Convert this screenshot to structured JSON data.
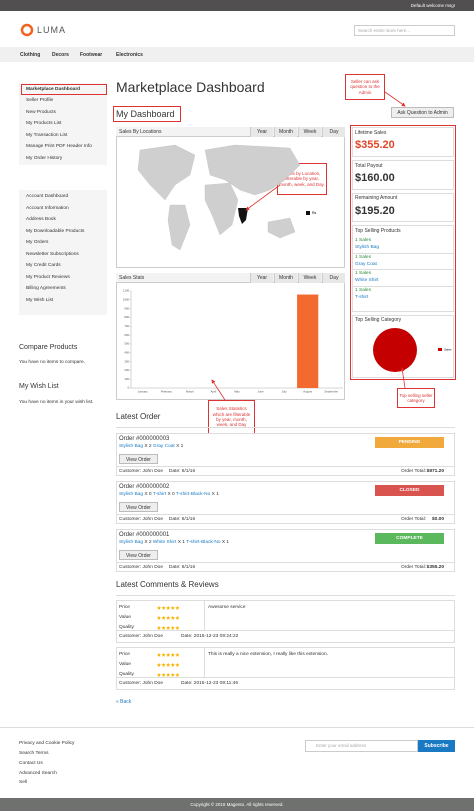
{
  "top_bar": {
    "welcome": "Default welcome msg!"
  },
  "header": {
    "logo": "LUMA",
    "search_placeholder": "Search entire store here..."
  },
  "nav": [
    "Clothing",
    "Decors",
    "Footwear",
    "Electronics"
  ],
  "sidebar": {
    "menu1": [
      "Marketplace Dashboard",
      "Seller Profile",
      "New Products",
      "My Products List",
      "My Transaction List",
      "Manage Print PDF Header Info",
      "My Order History"
    ],
    "menu2": [
      "Account Dashboard",
      "Account Information",
      "Address Book",
      "My Downloadable Products",
      "My Orders",
      "Newsletter Subscriptions",
      "My Credit Cards",
      "My Product Reviews",
      "Billing Agreements",
      "My Wish List"
    ],
    "compare_title": "Compare Products",
    "compare_text": "You have no items to compare.",
    "wishlist_title": "My Wish List",
    "wishlist_text": "You have no items in your wish list."
  },
  "page_title": "Marketplace Dashboard",
  "dashboard_title": "My Dashboard",
  "ask_button": "Ask Question to Admin",
  "annotations": [
    "Seller can ask question to the Admin",
    "Sales by Location, filterable by year, month, week, and Day.",
    "Sales Statistics which are filterable by year, month, week, and Day",
    "Top selling seller category"
  ],
  "sales_by_locations": {
    "title": "Sales By Locations",
    "tabs": [
      "Year",
      "Month",
      "Week",
      "Day"
    ],
    "legend": "Rs"
  },
  "sales_stats": {
    "type": "bar",
    "title": "Sales Stats",
    "tabs": [
      "Year",
      "Month",
      "Week",
      "Day"
    ],
    "categories": [
      "January",
      "February",
      "March",
      "April",
      "May",
      "June",
      "July",
      "August",
      "September"
    ],
    "values": [
      0,
      0,
      0,
      0,
      0,
      0,
      0,
      1060,
      0
    ],
    "color": "#f26a2e",
    "ylim": [
      0,
      1100
    ],
    "yticks": [
      0,
      100,
      200,
      300,
      400,
      500,
      600,
      700,
      800,
      900,
      1000,
      1100
    ]
  },
  "summary": {
    "lifetime_sales_label": "Lifetime Sales",
    "lifetime_sales": "$355.20",
    "total_payout_label": "Total Payout",
    "total_payout": "$160.00",
    "remaining_label": "Remaining Amount",
    "remaining": "$195.20",
    "top_products_title": "Top Selling Products",
    "top_products": [
      {
        "sales": "1 Sales",
        "name": "Stylish Bag"
      },
      {
        "sales": "1 Sales",
        "name": "Gray Coat"
      },
      {
        "sales": "1 Sales",
        "name": "White Shirt"
      },
      {
        "sales": "1 Sales",
        "name": "T-shirt"
      }
    ],
    "top_category_title": "Top Selling Category",
    "category_legend": "Sales"
  },
  "latest_order": {
    "title": "Latest Order",
    "orders": [
      {
        "title": "Order #000000003",
        "items": [
          {
            "name": "Stylish Bag",
            "qty": "X 2"
          },
          {
            "name": "Gray Coat",
            "qty": "X 1"
          }
        ],
        "status": "PENDING",
        "status_color": "#f2a93b",
        "button": "View Order",
        "customer": "Customer: John Doe",
        "date": "Date: 8/1/16",
        "total_label": "Order Total:",
        "total": "$871.20"
      },
      {
        "title": "Order #000000002",
        "items": [
          {
            "name": "Stylish Bag",
            "qty": "X 0"
          },
          {
            "name": "T-shirt",
            "qty": "X 0"
          },
          {
            "name": "T-shirt-Black-No",
            "qty": "X 1"
          }
        ],
        "status": "CLOSED",
        "status_color": "#d9534f",
        "button": "View Order",
        "customer": "Customer: John Doe",
        "date": "Date: 8/1/16",
        "total_label": "Order Total:",
        "total": "$0.00"
      },
      {
        "title": "Order #000000001",
        "items": [
          {
            "name": "Stylish Bag",
            "qty": "X 2"
          },
          {
            "name": "White Shirt",
            "qty": "X 1"
          },
          {
            "name": "T-shirt-Black-No",
            "qty": "X 1"
          }
        ],
        "status": "COMPLETE",
        "status_color": "#5cb85c",
        "button": "View Order",
        "customer": "Customer: John Doe",
        "date": "Date: 8/1/16",
        "total_label": "Order Total:",
        "total": "$355.20"
      }
    ]
  },
  "reviews": {
    "title": "Latest Comments & Reviews",
    "labels": [
      "Price",
      "Value",
      "Quality"
    ],
    "items": [
      {
        "comment": "Awesome service",
        "customer": "Customer: John Doe",
        "date": "Date: 2015-12-23 09:24:22"
      },
      {
        "comment": "This is really a nice extension, I really like this extension.",
        "customer": "Customer: John Doe",
        "date": "Date: 2015-12-23 09:11:46"
      }
    ]
  },
  "back": "« Back",
  "footer": {
    "links": [
      "Privacy and Cookie Policy",
      "Search Terms",
      "Contact Us",
      "Advanced Search",
      "Sell"
    ],
    "newsletter_placeholder": "Enter your email address",
    "subscribe": "Subscribe",
    "copyright": "Copyright © 2016 Magento. All rights reserved."
  }
}
